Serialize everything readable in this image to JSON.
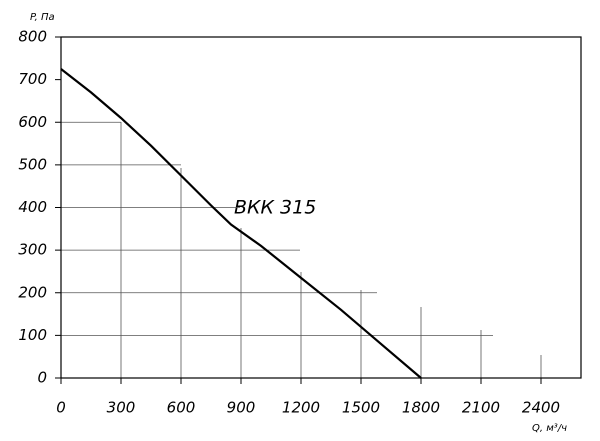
{
  "chart_data": {
    "type": "line",
    "y_label": "P, Па",
    "x_label": "Q,  м³/ч",
    "annotation": "ВКК 315",
    "xlim": [
      0,
      2600
    ],
    "ylim": [
      0,
      800
    ],
    "xticks": [
      0,
      300,
      600,
      900,
      1200,
      1500,
      1800,
      2100,
      2400
    ],
    "yticks": [
      0,
      100,
      200,
      300,
      400,
      500,
      600,
      700,
      800
    ],
    "grid": true,
    "series": [
      {
        "name": "ВКК 315",
        "color": "#000000",
        "x": [
          0,
          150,
          300,
          450,
          600,
          750,
          850,
          1000,
          1200,
          1400,
          1600,
          1800
        ],
        "values": [
          725,
          670,
          610,
          545,
          475,
          405,
          360,
          310,
          235,
          160,
          80,
          0
        ]
      }
    ]
  }
}
